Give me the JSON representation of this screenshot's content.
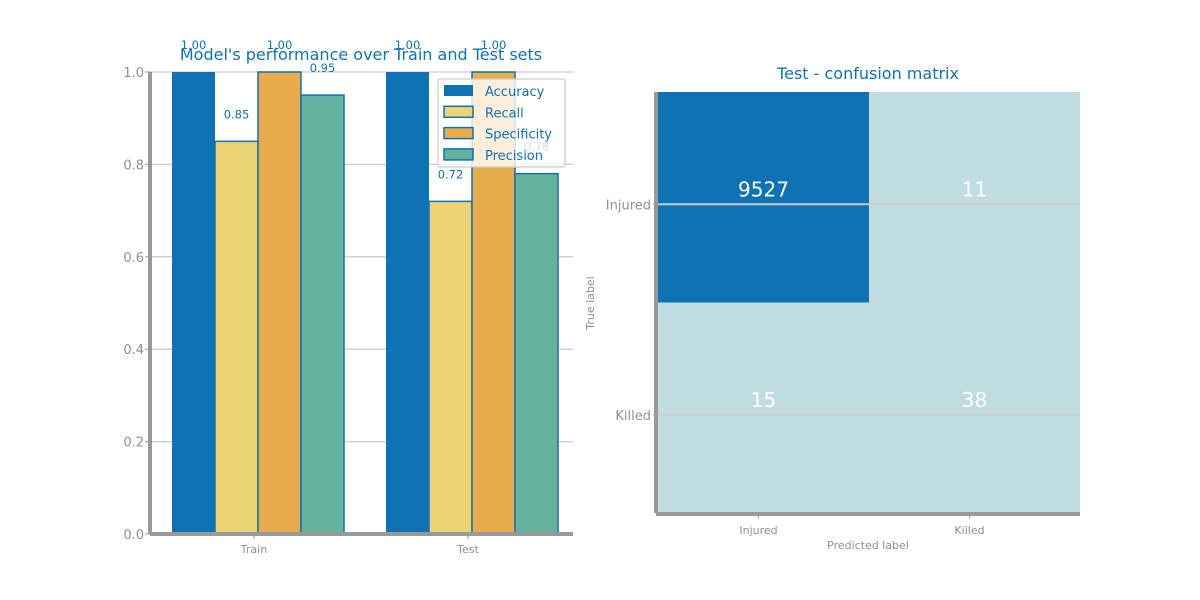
{
  "chart_data": [
    {
      "type": "bar",
      "title": "Model's performance over Train and Test sets",
      "categories": [
        "Train",
        "Test"
      ],
      "series": [
        {
          "name": "Accuracy",
          "values": [
            1.0,
            1.0
          ],
          "labels": [
            "1.00",
            "1.00"
          ]
        },
        {
          "name": "Recall",
          "values": [
            0.85,
            0.72
          ],
          "labels": [
            "0.85",
            "0.72"
          ]
        },
        {
          "name": "Specificity",
          "values": [
            1.0,
            1.0
          ],
          "labels": [
            "1.00",
            "1.00"
          ]
        },
        {
          "name": "Precision",
          "values": [
            0.95,
            0.78
          ],
          "labels": [
            "0.95",
            "0.78"
          ]
        }
      ],
      "ylim": [
        0,
        1.0
      ],
      "yticks": [
        "0.0",
        "0.2",
        "0.4",
        "0.6",
        "0.8",
        "1.0"
      ],
      "grid": "horizontal",
      "legend": "top-right",
      "colors": {
        "Accuracy": "#0e72b5",
        "Recall": "#ecd475",
        "Specificity": "#e8ac4c",
        "Precision": "#65b39e"
      }
    },
    {
      "type": "heatmap",
      "title": "Test - confusion matrix",
      "xlabel": "Predicted label",
      "ylabel": "True label",
      "x_categories": [
        "Injured",
        "Killed"
      ],
      "y_categories": [
        "Injured",
        "Killed"
      ],
      "values": [
        [
          9527,
          11
        ],
        [
          15,
          38
        ]
      ],
      "labels": [
        [
          "9527",
          "11"
        ],
        [
          "15",
          "38"
        ]
      ],
      "colors": {
        "high": "#0e72b5",
        "low": "#c0dee2"
      }
    }
  ]
}
